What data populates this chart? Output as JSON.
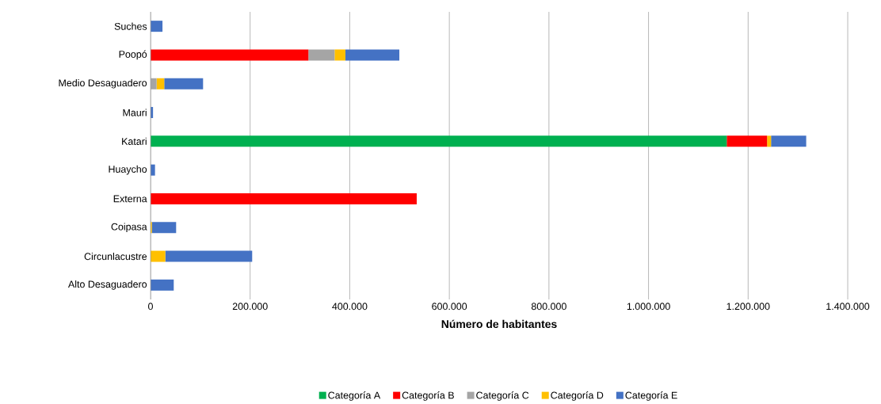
{
  "chart_data": {
    "type": "bar",
    "orientation": "horizontal",
    "stacked": true,
    "xlabel": "Número de habitantes",
    "categories": [
      "Suches",
      "Poopó",
      "Medio Desaguadero",
      "Mauri",
      "Katari",
      "Huaycho",
      "Externa",
      "Coipasa",
      "Circunlacustre",
      "Alto Desaguadero"
    ],
    "series": [
      {
        "name": "Categoría A",
        "color": "#00b050",
        "values": [
          null,
          null,
          null,
          null,
          1157000,
          null,
          null,
          null,
          null,
          null
        ]
      },
      {
        "name": "Categoría B",
        "color": "#ff0000",
        "values": [
          null,
          317000,
          null,
          null,
          81000,
          null,
          534500,
          null,
          null,
          null
        ]
      },
      {
        "name": "Categoría C",
        "color": "#a5a5a5",
        "values": [
          null,
          52600,
          12200,
          null,
          null,
          null,
          null,
          null,
          null,
          null
        ]
      },
      {
        "name": "Categoría D",
        "color": "#ffc000",
        "values": [
          null,
          21700,
          15300,
          null,
          8000,
          null,
          null,
          2700,
          29700,
          null
        ]
      },
      {
        "name": "Categoría E",
        "color": "#4472c4",
        "values": [
          24000,
          108300,
          78000,
          5000,
          70600,
          9000,
          null,
          48700,
          174400,
          46600
        ]
      }
    ],
    "xlim": [
      0,
      1400000
    ],
    "xticks": [
      0,
      {
        "value": 200000,
        "label": "200.000"
      },
      {
        "value": 400000,
        "label": "400.000"
      },
      {
        "value": 600000,
        "label": "600.000"
      },
      {
        "value": 800000,
        "label": "800.000"
      },
      {
        "value": 1000000,
        "label": "1.000.000"
      },
      {
        "value": 1200000,
        "label": "1.200.000"
      },
      {
        "value": 1400000,
        "label": "1.400.000"
      }
    ],
    "grid": "x",
    "legend": "bottom"
  }
}
